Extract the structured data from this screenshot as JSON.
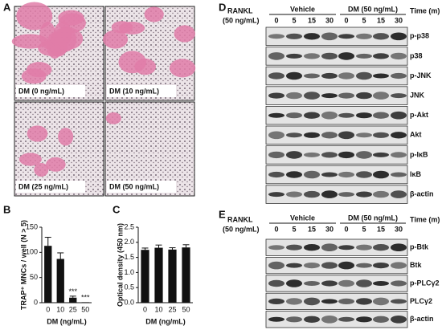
{
  "panel_labels": [
    "A",
    "B",
    "C",
    "D",
    "E"
  ],
  "micrographs": [
    "DM (0 ng/mL)",
    "DM (10 ng/mL)",
    "DM (25 ng/mL)",
    "DM (50 ng/mL)"
  ],
  "chart_data": [
    {
      "type": "bar",
      "ylabel": "TRAP⁺ MNCs / well (N > 5)",
      "xlabel": "DM (ng/mL)",
      "categories": [
        "0",
        "10",
        "25",
        "50"
      ],
      "values": [
        113,
        87,
        10,
        1
      ],
      "errors": [
        17,
        12,
        3,
        0
      ],
      "color": "#111111",
      "ylim": [
        0,
        150
      ],
      "yticks": [
        0,
        50,
        100,
        150
      ],
      "annotations": [
        {
          "x": "25",
          "text": "***"
        },
        {
          "x": "50",
          "text": "***"
        }
      ]
    },
    {
      "type": "bar",
      "ylabel": "Optical density (450 nm)",
      "xlabel": "DM (ng/mL)",
      "categories": [
        "0",
        "10",
        "25",
        "50"
      ],
      "values": [
        1.75,
        1.82,
        1.76,
        1.83
      ],
      "errors": [
        0.06,
        0.09,
        0.06,
        0.09
      ],
      "color": "#111111",
      "ylim": [
        0,
        2.5
      ],
      "yticks": [
        {
          "value": 0,
          "label": "0.0"
        },
        {
          "value": 0.5,
          "label": "0.5"
        },
        {
          "value": 1,
          "label": "1.0"
        },
        {
          "value": 1.5,
          "label": "1.5"
        },
        {
          "value": 2,
          "label": "2.0"
        },
        {
          "value": 2.5,
          "label": "2.5"
        }
      ]
    }
  ],
  "blots": [
    {
      "treatment": "RANKL",
      "dose": "(50 ng/mL)",
      "groups": [
        "Vehicle",
        "DM (50 ng/mL)"
      ],
      "time_label": "Time (m)",
      "times": [
        "0",
        "5",
        "15",
        "30",
        "0",
        "5",
        "15",
        "30"
      ],
      "rows": [
        "p-p38",
        "p38",
        "p-JNK",
        "JNK",
        "p-Akt",
        "Akt",
        "p-IκB",
        "IκB",
        "β-actin"
      ]
    },
    {
      "treatment": "RANKL",
      "dose": "(50 ng/mL)",
      "groups": [
        "Vehicle",
        "DM (50 ng/mL)"
      ],
      "time_label": "Time (m)",
      "times": [
        "0",
        "5",
        "15",
        "30",
        "0",
        "5",
        "15",
        "30"
      ],
      "rows": [
        "p-Btk",
        "Btk",
        "p-PLCγ2",
        "PLCγ2",
        "β-actin"
      ]
    }
  ]
}
